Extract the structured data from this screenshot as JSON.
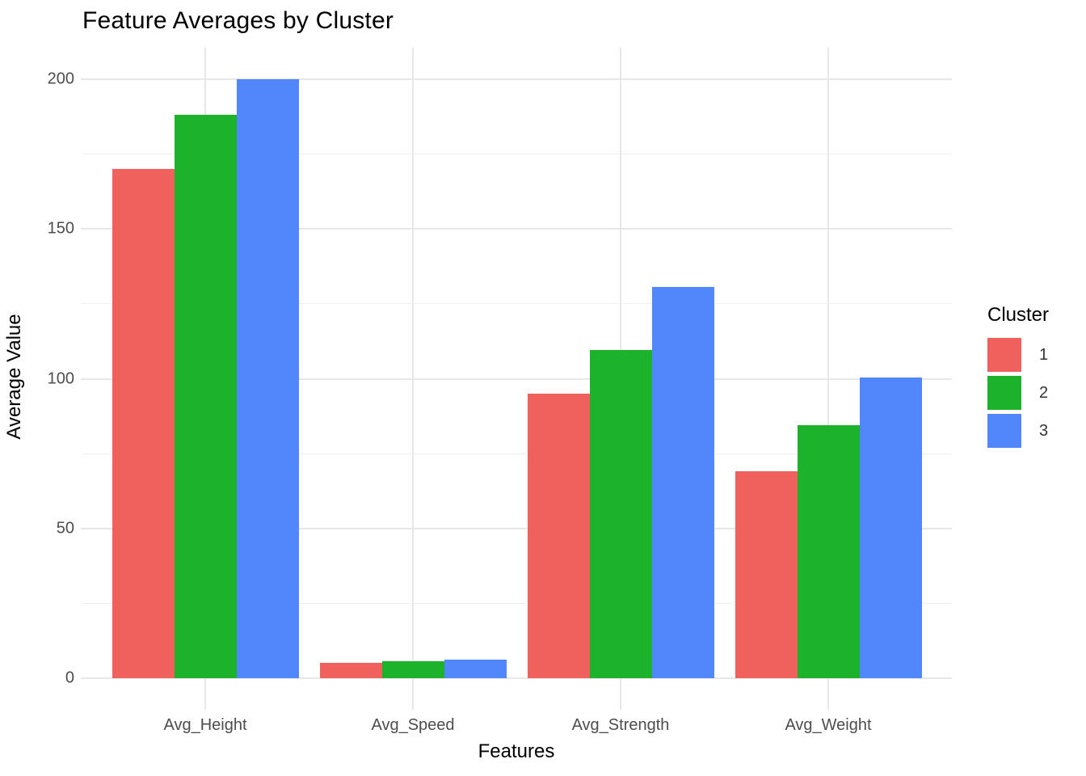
{
  "chart": {
    "title": "Feature Averages by Cluster",
    "x_axis_title": "Features",
    "y_axis_title": "Average Value",
    "legend_title": "Cluster"
  },
  "chart_data": {
    "type": "bar",
    "title": "Feature Averages by Cluster",
    "xlabel": "Features",
    "ylabel": "Average Value",
    "categories": [
      "Avg_Height",
      "Avg_Speed",
      "Avg_Strength",
      "Avg_Weight"
    ],
    "series": [
      {
        "name": "1",
        "color": "#F0605D",
        "values": [
          170,
          5,
          95,
          69
        ]
      },
      {
        "name": "2",
        "color": "#1CB22B",
        "values": [
          188,
          5.6,
          109.5,
          84.5
        ]
      },
      {
        "name": "3",
        "color": "#5287FB",
        "values": [
          200,
          6.3,
          130.5,
          100.5
        ]
      }
    ],
    "ylim": [
      0,
      200
    ],
    "yticks": [
      0,
      50,
      100,
      150,
      200
    ],
    "yticks_minor": [
      25,
      75,
      125,
      175
    ],
    "legend": {
      "title": "Cluster",
      "position": "right",
      "entries": [
        "1",
        "2",
        "3"
      ]
    },
    "grid": true,
    "style": {
      "background": "#FFFFFF",
      "grid_major_color": "#E7E7E7",
      "grid_minor_color": "#F0F0F0",
      "tick_label_color": "#4D4D4D",
      "text_color": "#000000"
    }
  }
}
